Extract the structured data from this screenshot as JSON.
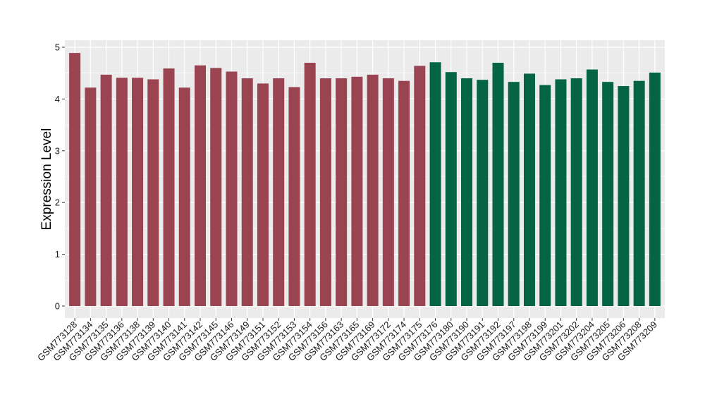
{
  "chart_data": {
    "type": "bar",
    "title": "",
    "xlabel": "",
    "ylabel": "Expression Level",
    "ylim": [
      0,
      5.1
    ],
    "yticks": [
      0,
      1,
      2,
      3,
      4,
      5
    ],
    "grid": true,
    "categories": [
      "GSM773128",
      "GSM773134",
      "GSM773135",
      "GSM773136",
      "GSM773138",
      "GSM773139",
      "GSM773140",
      "GSM773141",
      "GSM773142",
      "GSM773145",
      "GSM773146",
      "GSM773149",
      "GSM773151",
      "GSM773152",
      "GSM773153",
      "GSM773154",
      "GSM773156",
      "GSM773163",
      "GSM773165",
      "GSM773169",
      "GSM773172",
      "GSM773174",
      "GSM773175",
      "GSM773176",
      "GSM773180",
      "GSM773190",
      "GSM773191",
      "GSM773192",
      "GSM773197",
      "GSM773198",
      "GSM773199",
      "GSM773201",
      "GSM773202",
      "GSM773204",
      "GSM773205",
      "GSM773206",
      "GSM773208",
      "GSM773209"
    ],
    "values": [
      4.89,
      4.22,
      4.47,
      4.41,
      4.41,
      4.38,
      4.59,
      4.22,
      4.65,
      4.6,
      4.53,
      4.4,
      4.3,
      4.4,
      4.23,
      4.7,
      4.4,
      4.4,
      4.43,
      4.47,
      4.4,
      4.35,
      4.64,
      4.71,
      4.52,
      4.4,
      4.37,
      4.7,
      4.33,
      4.49,
      4.27,
      4.38,
      4.4,
      4.57,
      4.33,
      4.25,
      4.35,
      4.51
    ],
    "groups": [
      "a",
      "a",
      "a",
      "a",
      "a",
      "a",
      "a",
      "a",
      "a",
      "a",
      "a",
      "a",
      "a",
      "a",
      "a",
      "a",
      "a",
      "a",
      "a",
      "a",
      "a",
      "a",
      "a",
      "b",
      "b",
      "b",
      "b",
      "b",
      "b",
      "b",
      "b",
      "b",
      "b",
      "b",
      "b",
      "b",
      "b",
      "b"
    ],
    "colors": {
      "a": "#9a4452",
      "b": "#046444",
      "panel": "#ebebeb",
      "grid": "#ffffff"
    }
  }
}
